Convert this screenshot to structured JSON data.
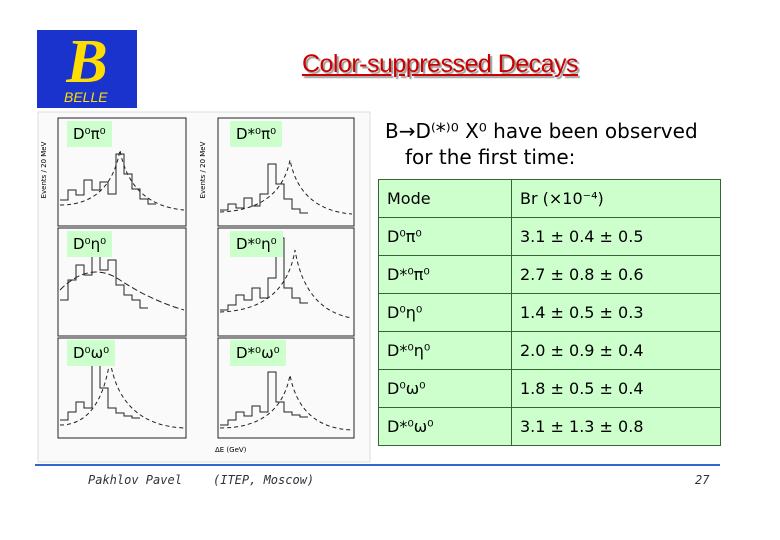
{
  "logo": {
    "text": "BELLE"
  },
  "title": "Color-suppressed Decays",
  "plots": {
    "labels": [
      "D⁰π⁰",
      "D*⁰π⁰",
      "D⁰η⁰",
      "D*⁰η⁰",
      "D⁰ω⁰",
      "D*⁰ω⁰"
    ],
    "y_axis_label": "Events / 20 MeV",
    "x_axis_label": "ΔE (GeV)"
  },
  "heading": {
    "lines": [
      "B→D⁽*⁾⁰ X⁰ have been observed",
      "for the first time:"
    ]
  },
  "table": {
    "header": [
      "Mode",
      "Br (×10⁻⁴)"
    ],
    "rows": [
      [
        "D⁰π⁰",
        "3.1 ± 0.4 ± 0.5"
      ],
      [
        "D*⁰π⁰",
        "2.7 ± 0.8 ± 0.6"
      ],
      [
        "D⁰η⁰",
        "1.4 ± 0.5 ± 0.3"
      ],
      [
        "D*⁰η⁰",
        "2.0 ± 0.9 ± 0.4"
      ],
      [
        "D⁰ω⁰",
        "1.8 ± 0.5 ± 0.4"
      ],
      [
        "D*⁰ω⁰",
        "3.1 ± 1.3 ± 0.8"
      ]
    ]
  },
  "footer": {
    "author": "Pakhlov Pavel",
    "affiliation": "(ITEP, Moscow)",
    "page": "27"
  }
}
